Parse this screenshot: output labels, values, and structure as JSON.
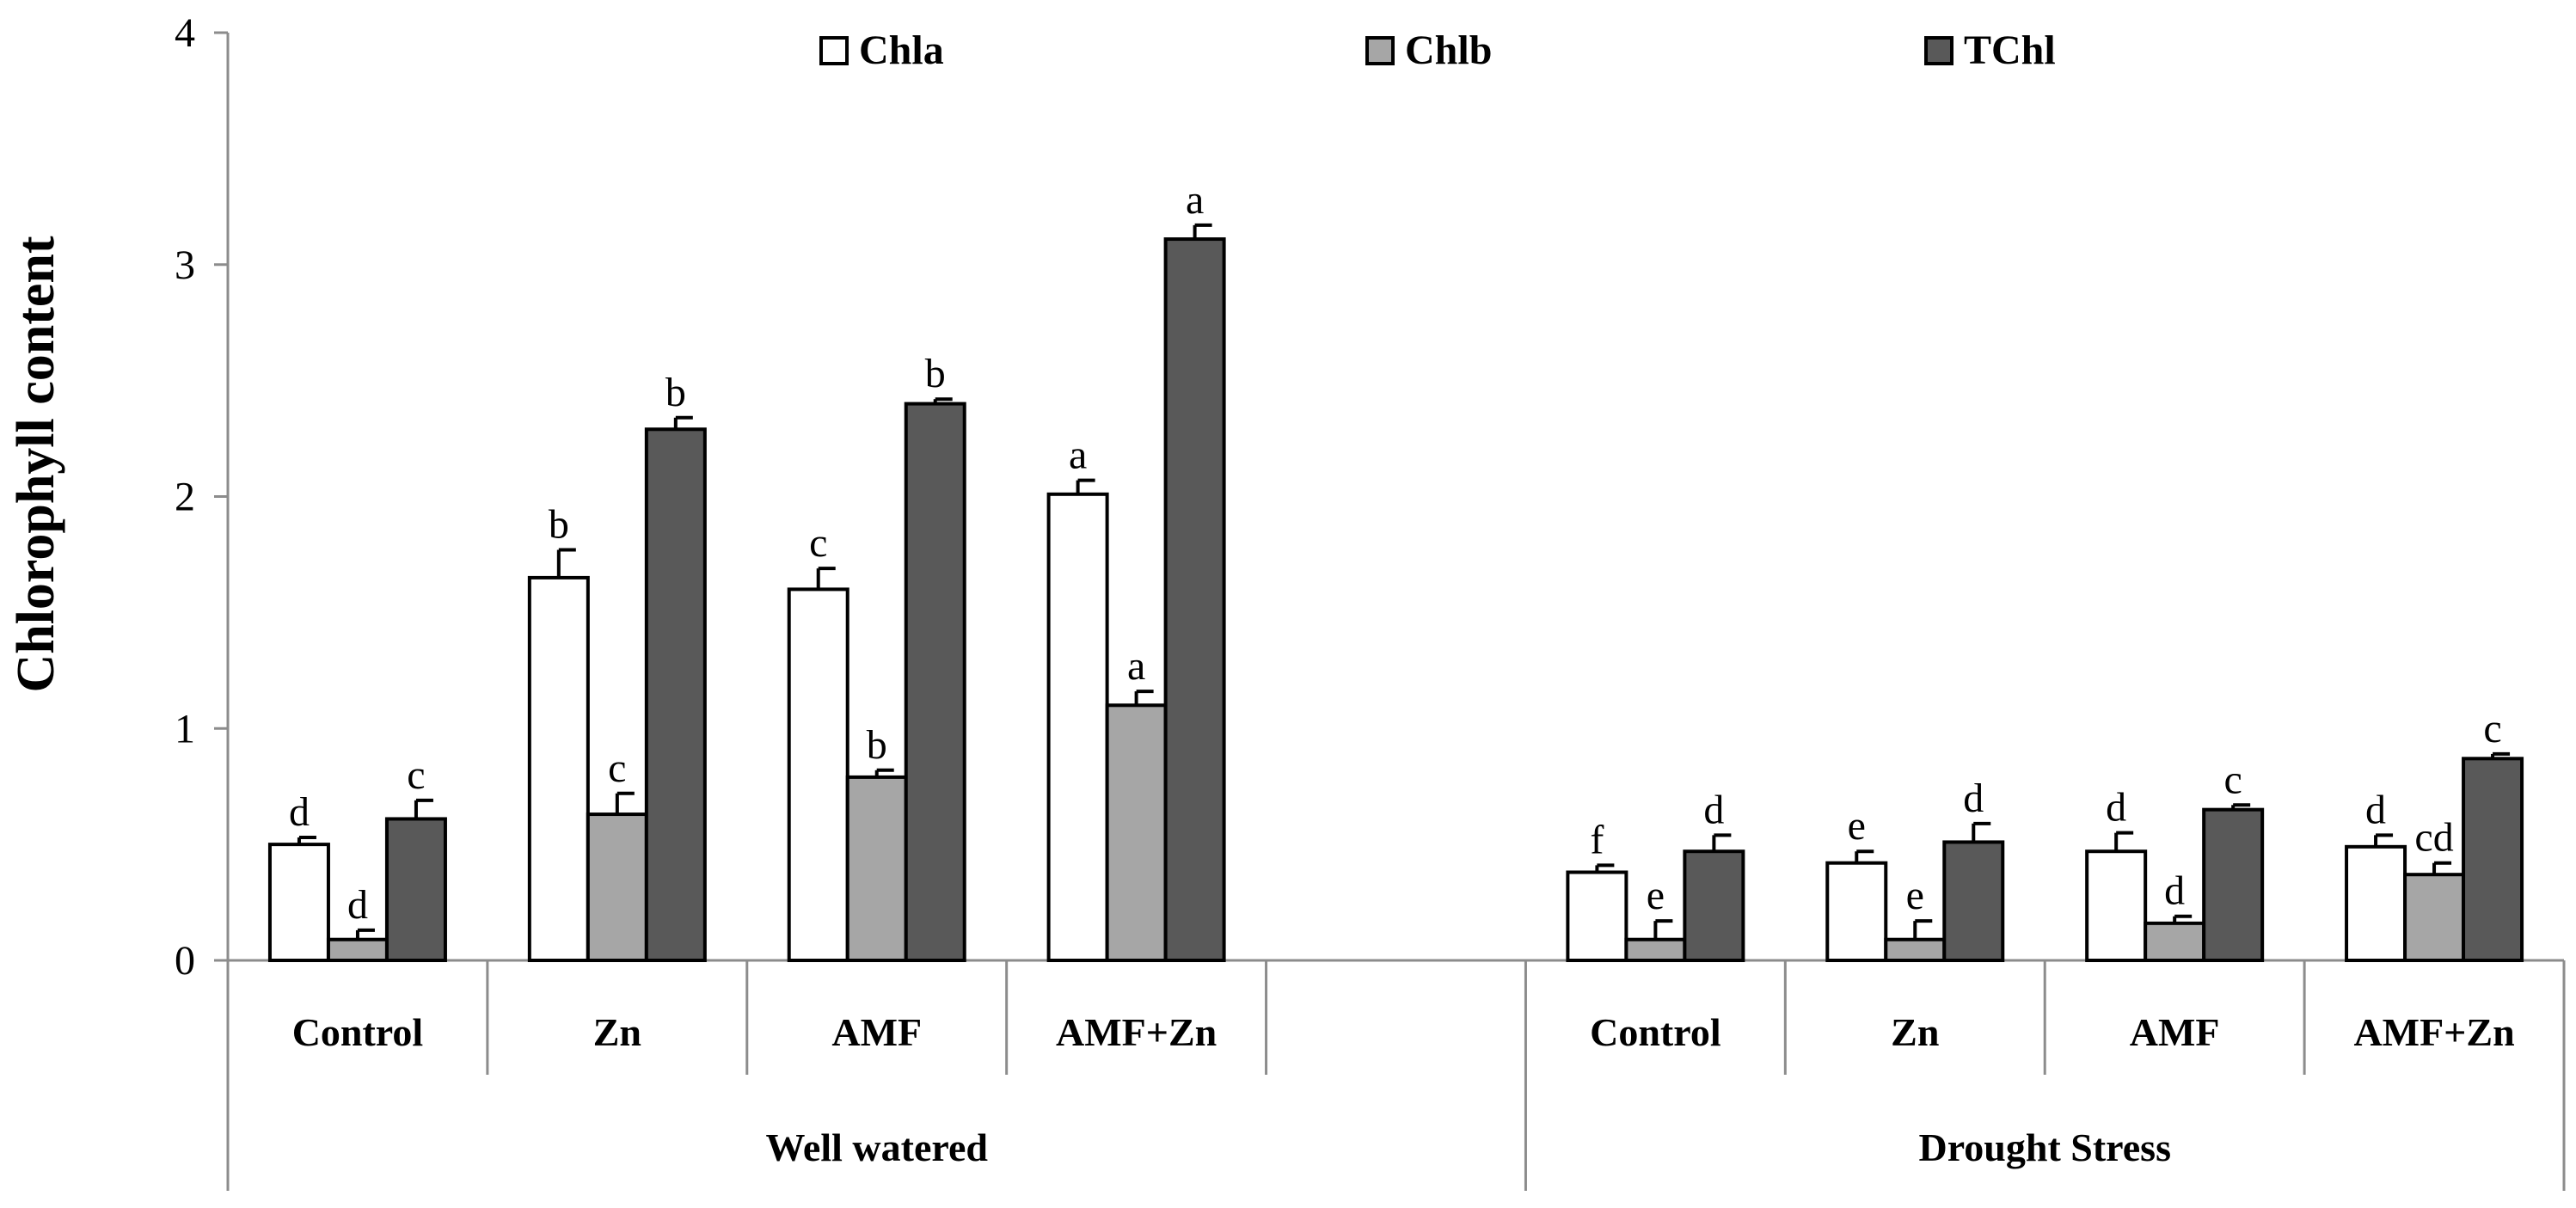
{
  "chart_data": {
    "type": "bar",
    "title": "",
    "ylabel": "Chlorophyll content",
    "xlabel": "",
    "ylim": [
      0,
      4
    ],
    "yticks": [
      0,
      1,
      2,
      3,
      4
    ],
    "grid": false,
    "legend_position": "top",
    "groups": [
      {
        "label": "Well watered",
        "categories": [
          "Control",
          "Zn",
          "AMF",
          "AMF+Zn"
        ]
      },
      {
        "label": "Drought Stress",
        "categories": [
          "Control",
          "Zn",
          "AMF",
          "AMF+Zn"
        ]
      }
    ],
    "categories": [
      "Control",
      "Zn",
      "AMF",
      "AMF+Zn",
      "Control",
      "Zn",
      "AMF",
      "AMF+Zn"
    ],
    "series": [
      {
        "name": "Chla",
        "color": "#ffffff",
        "values": [
          0.5,
          1.65,
          1.6,
          2.01,
          0.38,
          0.42,
          0.47,
          0.49
        ],
        "errors": [
          0.03,
          0.12,
          0.09,
          0.06,
          0.03,
          0.05,
          0.08,
          0.05
        ],
        "letters": [
          "d",
          "b",
          "c",
          "a",
          "f",
          "e",
          "d",
          "d"
        ]
      },
      {
        "name": "Chlb",
        "color": "#a6a6a6",
        "values": [
          0.09,
          0.63,
          0.79,
          1.1,
          0.09,
          0.09,
          0.16,
          0.37
        ],
        "errors": [
          0.04,
          0.09,
          0.03,
          0.06,
          0.08,
          0.08,
          0.03,
          0.05
        ],
        "letters": [
          "d",
          "c",
          "b",
          "a",
          "e",
          "e",
          "d",
          "cd"
        ]
      },
      {
        "name": "TChl",
        "color": "#595959",
        "values": [
          0.61,
          2.29,
          2.4,
          3.11,
          0.47,
          0.51,
          0.65,
          0.87
        ],
        "errors": [
          0.08,
          0.05,
          0.02,
          0.06,
          0.07,
          0.08,
          0.02,
          0.02
        ],
        "letters": [
          "c",
          "b",
          "b",
          "a",
          "d",
          "d",
          "c",
          "c"
        ]
      }
    ]
  }
}
